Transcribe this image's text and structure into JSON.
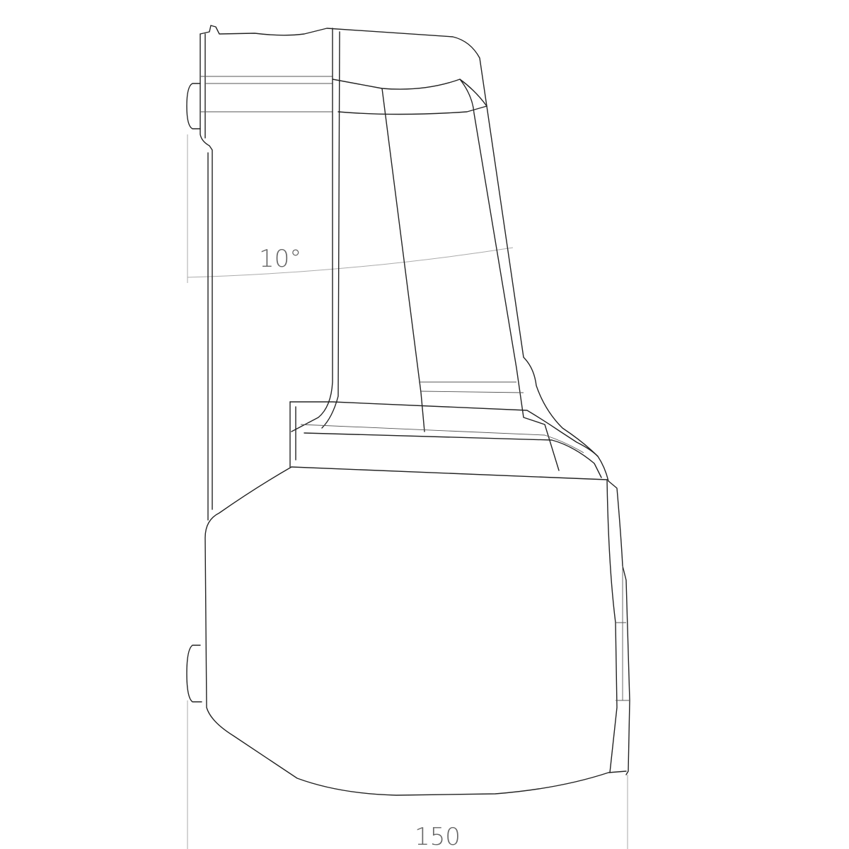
{
  "drawing": {
    "angle_dimension": "10°",
    "width_dimension": "150",
    "line_color": "#222222",
    "dimension_color": "#aaaaaa"
  }
}
